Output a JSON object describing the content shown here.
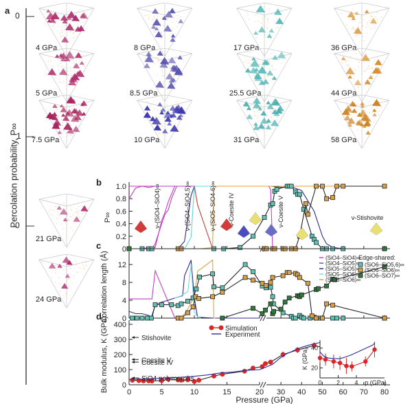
{
  "panel_a": {
    "letter": "a",
    "axis_label": "Percolation probability, P∞",
    "ticks": [
      "0",
      "1",
      "0"
    ],
    "snapshots": [
      {
        "label": "4 GPa",
        "color": "#b0306e",
        "column": 0,
        "row": 0
      },
      {
        "label": "5 GPa",
        "color": "#b0306e",
        "column": 0,
        "row": 1
      },
      {
        "label": "7.5 GPa",
        "color": "#a8235e",
        "column": 0,
        "row": 2
      },
      {
        "label": "21 GPa",
        "color": "#b0306e",
        "column": 0,
        "row": 3
      },
      {
        "label": "24 GPa",
        "color": "#b0306e",
        "column": 0,
        "row": 4
      },
      {
        "label": "8 GPa",
        "color": "#5a55b0",
        "column": 1,
        "row": 0
      },
      {
        "label": "8.5 GPa",
        "color": "#5a55b0",
        "column": 1,
        "row": 1
      },
      {
        "label": "10 GPa",
        "color": "#3e39b0",
        "column": 1,
        "row": 2
      },
      {
        "label": "17 GPa",
        "color": "#56b8b8",
        "column": 2,
        "row": 0
      },
      {
        "label": "25.5 GPa",
        "color": "#56b8b8",
        "column": 2,
        "row": 1
      },
      {
        "label": "31 GPa",
        "color": "#4aaeb0",
        "column": 2,
        "row": 2
      },
      {
        "label": "36 GPa",
        "color": "#d8902e",
        "column": 3,
        "row": 0
      },
      {
        "label": "44 GPa",
        "color": "#d8902e",
        "column": 3,
        "row": 1
      },
      {
        "label": "58 GPa",
        "color": "#d08424",
        "column": 3,
        "row": 2
      }
    ]
  },
  "chart_data": [
    {
      "id": "b",
      "type": "line",
      "title": "",
      "letter": "b",
      "xlabel": "Pressure (GPa)",
      "ylabel": "P∞",
      "ylim": [
        0,
        1.0
      ],
      "yticks": [
        "0",
        "0.2",
        "0.4",
        "0.6",
        "0.8",
        "1.0"
      ],
      "x_break": [
        20,
        22
      ],
      "annotations": [
        "ν-(SiO4–SiO4)∞",
        "ν-(SiO4–SiO4,5)∞",
        "ν-(SiO5–SiO4-6)∞",
        "ν-Coesite IV",
        "ν-Coesite V",
        "ν-Stishovite"
      ],
      "series": [
        {
          "name": "(SiO4–SiO4)∞ a",
          "color": "#c33bc4",
          "marker": "none",
          "x": [
            0,
            1,
            2,
            3,
            4,
            5,
            6,
            7,
            7.5
          ],
          "y": [
            0.8,
            0.97,
            1.0,
            0.98,
            1.0,
            1.0,
            1.0,
            1.0,
            1.0
          ]
        },
        {
          "name": "(SiO4–SiO4)∞ b",
          "color": "#c33bc4",
          "marker": "none",
          "x": [
            0,
            4,
            5,
            6,
            7,
            7.5,
            20,
            24,
            25,
            26,
            80
          ],
          "y": [
            1.0,
            1.0,
            1.0,
            1.0,
            1.0,
            1.0,
            1.0,
            1.0,
            0.95,
            0.0,
            0.0
          ]
        },
        {
          "name": "(SiO4–SiO4)∞ c",
          "color": "#c33bc4",
          "marker": "none",
          "x": [
            0,
            2,
            3,
            4,
            5,
            5.5,
            6,
            7,
            20
          ],
          "y": [
            0,
            0,
            0.02,
            0.02,
            0.45,
            0.58,
            0.75,
            1.0,
            1.0
          ]
        },
        {
          "name": "(SiO4–SiO4)∞ d",
          "color": "#c33bc4",
          "marker": "none",
          "x": [
            0,
            3.5,
            4,
            5,
            5.5,
            6,
            6.5,
            7.3,
            20
          ],
          "y": [
            0,
            0,
            0.08,
            0.4,
            0.55,
            0.62,
            0.8,
            1.0,
            1.0
          ]
        },
        {
          "name": "(SiO4–SiO4,5)∞",
          "color": "#2d2a8c",
          "marker": "none",
          "x": [
            0,
            7.5,
            8.5,
            9.5,
            10,
            20,
            25,
            31,
            34,
            40,
            46,
            50,
            52,
            55,
            60,
            80
          ],
          "y": [
            0,
            0,
            0.12,
            0.85,
            1.0,
            1.0,
            1.0,
            0.98,
            1.0,
            0.93,
            0.6,
            0.2,
            0.08,
            0.02,
            0.0,
            0.0
          ]
        },
        {
          "name": "(SiO5–SiO4-6)∞ light",
          "color": "#5fd4d8",
          "marker": "none",
          "x": [
            0,
            8.5,
            9.5,
            10,
            12.8,
            13,
            20
          ],
          "y": [
            0,
            0,
            0.18,
            1.0,
            1.0,
            1.0,
            1.0
          ]
        },
        {
          "name": "(SiO5–SiO4-6)∞",
          "color": "#c0392b",
          "marker": "none",
          "x": [
            10,
            10.5,
            12.8
          ],
          "y": [
            1.0,
            0.7,
            0.0
          ]
        },
        {
          "name": "(SiO6–SiO6)∞ orange line",
          "color": "#e0a33a",
          "marker": "none",
          "x": [
            0,
            11,
            12.8,
            13,
            20,
            80
          ],
          "y": [
            0,
            0,
            0.02,
            1.0,
            1.0,
            1.0
          ]
        },
        {
          "name": "Edge-shared (SiO6–SiO5,6)∞",
          "color": "#5fc2b4",
          "marker": "square",
          "x": [
            0,
            2,
            3,
            3.5,
            13,
            14.5,
            17,
            19,
            22,
            25,
            26,
            27,
            28,
            33,
            34,
            35,
            37,
            38,
            39,
            41,
            45,
            46,
            47,
            50,
            52,
            55,
            60,
            80
          ],
          "y": [
            0,
            0,
            0,
            0,
            0,
            0,
            0.02,
            0.2,
            0.5,
            0.7,
            0.72,
            0.92,
            0.95,
            1.0,
            1.0,
            1.0,
            0.91,
            0.87,
            0.87,
            0.63,
            0.2,
            0.15,
            0.1,
            0.0,
            0.0,
            0.0,
            0.0,
            0.0
          ]
        },
        {
          "name": "Edge-shared (SiO6–SiO6)∞",
          "color": "#d8a04a",
          "marker": "square",
          "x": [
            0,
            7.5,
            8,
            22,
            23,
            26,
            27,
            31,
            32,
            35,
            37,
            39,
            42,
            43,
            47,
            50,
            52,
            55,
            57,
            60,
            80
          ],
          "y": [
            0,
            0,
            0,
            0,
            0,
            0,
            0,
            0,
            0,
            0,
            0,
            0.2,
            0.72,
            0.55,
            1.0,
            1.0,
            0.8,
            0.82,
            1.0,
            1.0,
            1.0
          ]
        },
        {
          "name": "Edge-shared (SiO6–SiO7)∞",
          "color": "#2f7a3a",
          "marker": "square",
          "x": [
            0,
            80
          ],
          "y": [
            0,
            0
          ]
        }
      ]
    },
    {
      "id": "c",
      "type": "line",
      "letter": "c",
      "ylabel": "Correlation length (Å)",
      "ylim": [
        0,
        14
      ],
      "yticks": [
        "0",
        "4",
        "8",
        "12"
      ],
      "legend_title": "Edge-shared:",
      "legend": [
        {
          "name": "(SiO4–SiO4)∞",
          "color": "#c33bc4",
          "marker": "line"
        },
        {
          "name": "(SiO4–SiO5)∞",
          "color": "#5a55b0",
          "marker": "line"
        },
        {
          "name": "(SiO5–SiO5)∞",
          "color": "#2d2a8c",
          "marker": "line"
        },
        {
          "name": "(SiO5–SiO6)∞",
          "color": "#7fd8e0",
          "marker": "line"
        },
        {
          "name": "(SiO6–SiO6)∞",
          "color": "#e0a33a",
          "marker": "line"
        },
        {
          "name": "(SiO6–SiO5,6)∞",
          "color": "#5fc2b4",
          "marker": "square"
        },
        {
          "name": "(SiO6–SiO6)∞",
          "color": "#d8a04a",
          "marker": "square"
        },
        {
          "name": "(SiO6–SiO7)∞",
          "color": "#2f7a3a",
          "marker": "square"
        }
      ],
      "series": [
        {
          "name": "(SiO4–SiO4)∞",
          "color": "#c33bc4",
          "marker": "none",
          "x": [
            0,
            3,
            3.5,
            4,
            7,
            7.5
          ],
          "y": [
            4.3,
            4.3,
            4.3,
            10.6,
            0.1,
            0
          ]
        },
        {
          "name": "(SiO5–SiO5)∞",
          "color": "#2d2a8c",
          "marker": "none",
          "x": [
            0,
            1,
            2,
            3,
            3.5,
            4,
            5,
            6,
            7,
            8.2,
            8.5,
            9.5,
            10,
            10.5,
            13,
            20
          ],
          "y": [
            1.5,
            1,
            1,
            0.6,
            0.1,
            3,
            3.6,
            4,
            4.5,
            5,
            9.5,
            13,
            4.5,
            0.2,
            0,
            0
          ]
        },
        {
          "name": "(SiO5–SiO6)∞",
          "color": "#7fd8e0",
          "marker": "none",
          "x": [
            7,
            8,
            9,
            9.5,
            10,
            10.5,
            11
          ],
          "y": [
            4.5,
            5,
            6,
            12,
            1.5,
            0.2,
            0
          ]
        },
        {
          "name": "(SiO6–SiO6)∞",
          "color": "#e0a33a",
          "marker": "none",
          "x": [
            8,
            9,
            10,
            10.5,
            12.8,
            13,
            13.2
          ],
          "y": [
            0,
            2,
            5,
            10.5,
            13,
            0,
            0
          ]
        },
        {
          "name": "Edge-shared (SiO6–SiO5,6)∞",
          "color": "#5fc2b4",
          "marker": "square",
          "x": [
            0.5,
            1.2,
            2,
            2.8,
            3.4,
            4,
            5,
            6.5,
            7.5,
            8,
            9,
            9.8,
            10.3,
            10.8,
            12.8,
            13,
            14.3,
            17.8,
            19,
            21,
            22.8,
            25,
            26,
            26.4,
            31,
            35,
            36,
            37,
            39,
            40,
            41,
            44,
            46,
            47,
            48,
            55,
            57,
            60,
            80
          ],
          "y": [
            0,
            0,
            0,
            0,
            0,
            3,
            3,
            3,
            2.8,
            3.2,
            3.8,
            4.5,
            6.5,
            9.2,
            9.9,
            7,
            6.8,
            12,
            10.4,
            7.2,
            6.8,
            6.9,
            4.8,
            3.2,
            1.2,
            0.4,
            0,
            0,
            0.6,
            0.2,
            0,
            0,
            0.2,
            0,
            0,
            0,
            0,
            0,
            0
          ]
        },
        {
          "name": "Edge-shared (SiO6–SiO6)∞",
          "color": "#d8a04a",
          "marker": "square",
          "x": [
            7.5,
            8,
            9,
            9.8,
            10.2,
            10.7,
            12.8,
            14.3,
            17.8,
            19,
            21,
            22.8,
            25,
            26,
            31,
            33,
            34,
            37,
            38,
            39,
            43,
            45,
            47,
            50,
            52,
            55,
            80
          ],
          "y": [
            0,
            0,
            1.2,
            2.5,
            4.8,
            4.4,
            4.8,
            5.8,
            9.1,
            8.5,
            7.8,
            7.3,
            8.0,
            9.1,
            9.5,
            10.2,
            10.2,
            10.0,
            9.7,
            9.1,
            7.8,
            0.5,
            0,
            0,
            3.2,
            2.9,
            0
          ]
        },
        {
          "name": "Edge-shared (SiO6–SiO7)∞",
          "color": "#2f7a3a",
          "marker": "square",
          "x": [
            14.3,
            19,
            21,
            22.5,
            25,
            26,
            26.5,
            30,
            32,
            34,
            38,
            39,
            40,
            47,
            48,
            52,
            55,
            56,
            80
          ],
          "y": [
            0,
            2.2,
            1,
            1.8,
            3.2,
            1,
            1.5,
            2,
            3.6,
            4.5,
            5,
            4.8,
            5.2,
            6.4,
            6.6,
            7.2,
            8.7,
            8.6,
            11.5
          ]
        }
      ]
    },
    {
      "id": "d",
      "type": "line",
      "letter": "d",
      "xlabel": "Pressure (GPa)",
      "ylabel": "Bulk modulus, K (GPa)",
      "ylim": [
        0,
        400
      ],
      "yticks": [
        "0",
        "100",
        "200",
        "300",
        "400"
      ],
      "xticks": [
        "0",
        "5",
        "10",
        "15",
        "20",
        "30",
        "40",
        "50",
        "60",
        "70",
        "80"
      ],
      "x_break": [
        20,
        22
      ],
      "legend": [
        {
          "name": "Simulation",
          "color": "#d62828",
          "marker": "circle"
        },
        {
          "name": "Experiment",
          "color": "#2d2a9c",
          "marker": "line"
        }
      ],
      "annotations": [
        {
          "text": "Stishovite",
          "y": 313
        },
        {
          "text": "Coesite V",
          "y": 167
        },
        {
          "text": "Coesite IV",
          "y": 150
        },
        {
          "text": "SiO4 polymorphs",
          "y": 45
        }
      ],
      "series": [
        {
          "name": "Simulation",
          "color": "#d62828",
          "marker": "circle",
          "x": [
            0.5,
            1.5,
            2.2,
            3,
            3.5,
            5,
            6,
            7.5,
            8,
            9,
            10,
            10.7,
            13,
            14.3,
            17.7,
            19,
            21,
            22.5,
            25,
            31,
            38,
            46,
            55
          ],
          "y": [
            30,
            28,
            26,
            26,
            25,
            28,
            37,
            32,
            30,
            33,
            22,
            30,
            58,
            70,
            90,
            110,
            120,
            140,
            150,
            200,
            230,
            260,
            230
          ],
          "err": [
            0,
            0,
            0,
            0,
            0,
            0,
            0,
            0,
            0,
            0,
            0,
            0,
            0,
            0,
            0,
            0,
            10,
            0,
            12,
            20,
            20,
            20,
            20
          ]
        },
        {
          "name": "Experiment",
          "color": "#2d2a9c",
          "marker": "none",
          "x": [
            0,
            2,
            4,
            6,
            8,
            10,
            12,
            14,
            16,
            18,
            20,
            23,
            26,
            29,
            32,
            36,
            40,
            45,
            50,
            55,
            60
          ],
          "y": [
            35,
            38,
            42,
            45,
            50,
            56,
            65,
            78,
            85,
            95,
            100,
            118,
            135,
            170,
            200,
            225,
            248,
            268,
            283,
            292,
            298
          ]
        }
      ],
      "inset": {
        "xlabel": "p (GPa)",
        "ylabel": "K (GPa)",
        "xticks": [
          "0",
          "2",
          "4"
        ],
        "yticks": [
          "20",
          "40"
        ],
        "xlim": [
          0,
          6
        ],
        "ylim": [
          10,
          48
        ],
        "series": [
          {
            "name": "Simulation",
            "color": "#d62828",
            "marker": "circle",
            "x": [
              0,
              0.6,
              1.5,
              2.2,
              2.9,
              3.5,
              5,
              6
            ],
            "y": [
              30,
              28.5,
              26.5,
              25,
              22,
              21.5,
              26.5,
              38.5
            ],
            "err": [
              5,
              6,
              7,
              7,
              8,
              5,
              5,
              8
            ]
          },
          {
            "name": "Experiment",
            "color": "#2d2a9c",
            "marker": "none",
            "x": [
              0,
              0.4,
              0.9,
              1.5,
              2.2,
              2.8,
              3.4,
              4,
              4.6,
              5.2,
              5.8,
              6
            ],
            "y": [
              36,
              32,
              30,
              29.5,
              29.3,
              31,
              33,
              35.5,
              38,
              40.5,
              43,
              45
            ]
          }
        ]
      }
    }
  ]
}
